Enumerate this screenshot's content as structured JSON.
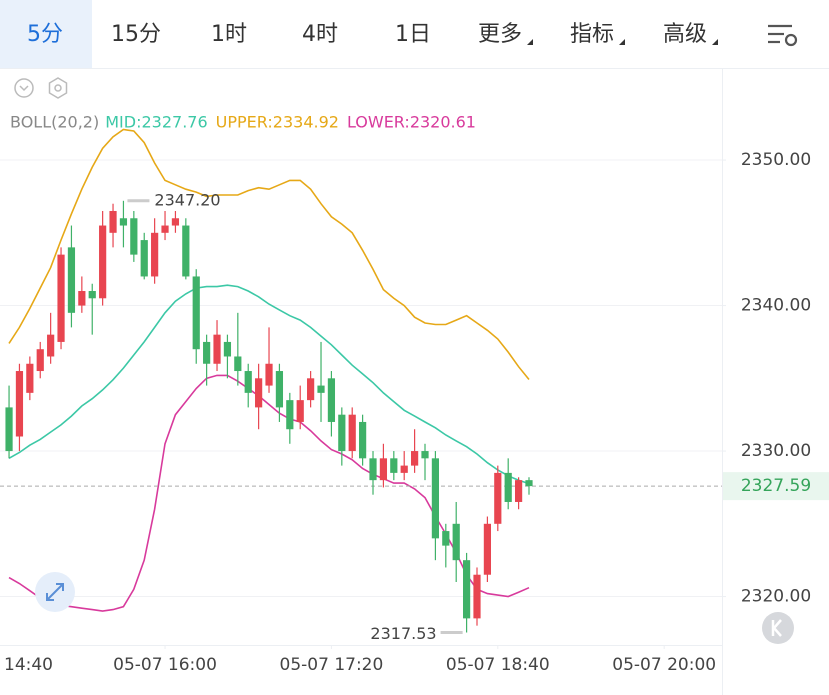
{
  "toolbar": {
    "tabs": [
      "5分",
      "15分",
      "1时",
      "4时",
      "1日",
      "更多",
      "指标",
      "高级"
    ]
  },
  "chart_data": {
    "type": "candlestick",
    "indicator": "BOLL(20,2)",
    "up_color": "#e84550",
    "down_color": "#3fb168",
    "open": [
      2333,
      2331,
      2334,
      2335.5,
      2336.5,
      2337.5,
      2344,
      2340,
      2341,
      2340.5,
      2345,
      2346,
      2346,
      2344.5,
      2342,
      2345,
      2345.5,
      2345.5,
      2342,
      2337.5,
      2336,
      2337.5,
      2336.5,
      2335.5,
      2333,
      2334.5,
      2335.5,
      2333.5,
      2332,
      2333.5,
      2334.5,
      2335,
      2332.5,
      2330,
      2332,
      2329.5,
      2328,
      2329.5,
      2328.5,
      2329,
      2330,
      2329.5,
      2324.5,
      2325,
      2322.5,
      2318.5,
      2321.5,
      2325,
      2328.5,
      2326.5,
      2328
    ],
    "high": [
      2334.5,
      2336,
      2336.5,
      2337.5,
      2339.5,
      2344,
      2345.5,
      2342,
      2341.5,
      2346.5,
      2347,
      2347.2,
      2346.5,
      2345,
      2346,
      2346.5,
      2346.5,
      2346,
      2342.5,
      2338,
      2339,
      2338,
      2339.5,
      2336,
      2336,
      2338.5,
      2336,
      2334,
      2334.5,
      2335.5,
      2337.5,
      2335.5,
      2333,
      2333,
      2332.5,
      2330,
      2330.5,
      2330,
      2330,
      2331.5,
      2330.5,
      2330,
      2325,
      2326.5,
      2323,
      2322,
      2325.5,
      2329,
      2329.5,
      2328.2,
      2328.2
    ],
    "low": [
      2329.5,
      2330,
      2333.5,
      2335,
      2336,
      2337,
      2338.5,
      2339.5,
      2338,
      2340,
      2344,
      2344,
      2343,
      2341.8,
      2341.5,
      2344.5,
      2345,
      2341.8,
      2336,
      2334.5,
      2335.5,
      2335,
      2334.5,
      2333,
      2331.5,
      2334,
      2332,
      2330.5,
      2331.5,
      2333,
      2332,
      2331,
      2329,
      2329.5,
      2329,
      2327,
      2327.5,
      2328,
      2328,
      2328.5,
      2328,
      2322.5,
      2322,
      2321,
      2317.53,
      2318,
      2321,
      2324.5,
      2326,
      2326,
      2327
    ],
    "close": [
      2330,
      2335.5,
      2336,
      2337,
      2338,
      2343.5,
      2339.5,
      2341,
      2340.5,
      2345.5,
      2346.5,
      2345.5,
      2343.5,
      2342,
      2345,
      2345.5,
      2346,
      2342,
      2337,
      2336,
      2338,
      2336.5,
      2335.5,
      2334,
      2335,
      2336,
      2333,
      2331.5,
      2333.5,
      2335,
      2334,
      2332,
      2330,
      2332.5,
      2329.5,
      2328,
      2329.5,
      2328.5,
      2329,
      2330,
      2329.5,
      2324,
      2323.5,
      2322.5,
      2318.5,
      2321.5,
      2325,
      2328.5,
      2326.5,
      2328,
      2327.59
    ],
    "series": [
      {
        "name": "MID:2327.76",
        "color": "#3cc8a6",
        "values": [
          2329.5,
          2329.9,
          2330.4,
          2330.8,
          2331.3,
          2331.8,
          2332.4,
          2333.1,
          2333.6,
          2334.2,
          2334.9,
          2335.7,
          2336.6,
          2337.5,
          2338.5,
          2339.5,
          2340.3,
          2340.8,
          2341.2,
          2341.3,
          2341.3,
          2341.4,
          2341.3,
          2341,
          2340.6,
          2340.1,
          2339.7,
          2339.3,
          2339,
          2338.5,
          2337.9,
          2337.3,
          2336.6,
          2335.9,
          2335.3,
          2334.7,
          2334,
          2333.4,
          2332.8,
          2332.4,
          2332,
          2331.6,
          2331.1,
          2330.7,
          2330.3,
          2329.8,
          2329.2,
          2328.7,
          2328.3,
          2328,
          2327.76
        ]
      },
      {
        "name": "UPPER:2334.92",
        "color": "#e6a817",
        "values": [
          2337.4,
          2338.5,
          2339.8,
          2341.2,
          2342.6,
          2344.5,
          2346.3,
          2348,
          2349.5,
          2350.8,
          2351.6,
          2352.1,
          2352,
          2351.2,
          2349.8,
          2348.6,
          2348.3,
          2348,
          2347.8,
          2347.5,
          2347.6,
          2347.6,
          2347.6,
          2347.9,
          2348.1,
          2348,
          2348.3,
          2348.6,
          2348.6,
          2348,
          2347,
          2346.1,
          2345.6,
          2345,
          2343.8,
          2342.5,
          2341.1,
          2340.5,
          2340,
          2339.2,
          2338.8,
          2338.7,
          2338.7,
          2339,
          2339.3,
          2338.8,
          2338.3,
          2337.7,
          2336.8,
          2335.8,
          2334.92
        ]
      },
      {
        "name": "LOWER:2320.61",
        "color": "#d83a9c",
        "values": [
          2321.3,
          2320.9,
          2320.4,
          2319.9,
          2319.6,
          2319.4,
          2319.3,
          2319.2,
          2319.1,
          2319,
          2319.1,
          2319.3,
          2320.5,
          2322.5,
          2326,
          2330.5,
          2332.5,
          2333.4,
          2334.3,
          2335,
          2335.2,
          2335.2,
          2334.8,
          2334.3,
          2333.8,
          2333.2,
          2332.6,
          2332.2,
          2332,
          2331.4,
          2330.7,
          2330.1,
          2329.8,
          2329.4,
          2328.8,
          2328.4,
          2328.1,
          2327.8,
          2327.8,
          2327.4,
          2326.8,
          2325.5,
          2324.3,
          2323,
          2321.5,
          2320.5,
          2320.2,
          2320.1,
          2320,
          2320.3,
          2320.61
        ]
      }
    ],
    "ylim": [
      2316.67,
      2356.19
    ],
    "yticks": [
      {
        "value": 2320,
        "label": "2320.00"
      },
      {
        "value": 2330,
        "label": "2330.00"
      },
      {
        "value": 2340,
        "label": "2340.00"
      },
      {
        "value": 2350,
        "label": "2350.00"
      }
    ],
    "xlim": [
      -0.87,
      68.56
    ],
    "xticks": [
      {
        "value": -1,
        "label": "14:40"
      },
      {
        "value": 15,
        "label": "05-07 16:00"
      },
      {
        "value": 31,
        "label": "05-07 17:20"
      },
      {
        "value": 47,
        "label": "05-07 18:40"
      },
      {
        "value": 63,
        "label": "05-07 20:00"
      }
    ],
    "grid": true,
    "last_price": 2327.59,
    "annotations": [
      {
        "value": 2347.2,
        "label": "2347.20",
        "kind": "high"
      },
      {
        "value": 2317.53,
        "label": "2317.53",
        "kind": "low"
      }
    ]
  }
}
